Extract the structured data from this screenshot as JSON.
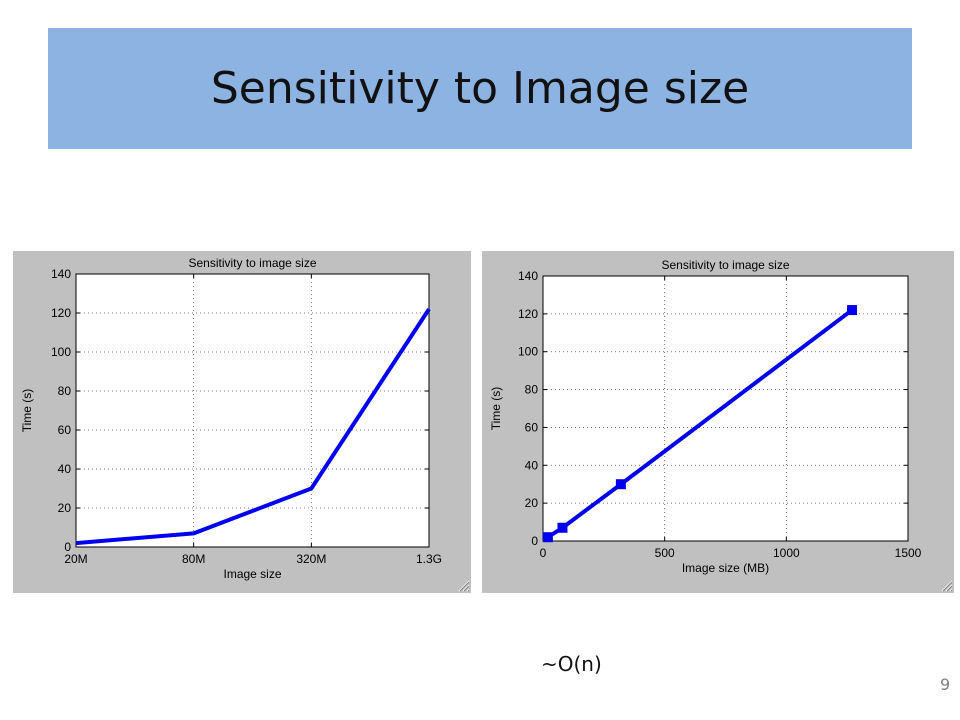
{
  "slide": {
    "title": "Sensitivity to Image size",
    "footnote": "~O(n)",
    "page_number": "9"
  },
  "colors": {
    "title_bar": "#8db3e2",
    "figure_bg": "#c0c0c0",
    "series": "#0000ee"
  },
  "chart_data": [
    {
      "type": "line",
      "title": "Sensitivity to image size",
      "xlabel": "Image size",
      "ylabel": "Time (s)",
      "categories": [
        "20M",
        "80M",
        "320M",
        "1.3G"
      ],
      "series": [
        {
          "values": [
            2,
            7,
            30,
            122
          ]
        }
      ],
      "ylim": [
        0,
        140
      ],
      "yticks": [
        0,
        20,
        40,
        60,
        80,
        100,
        120,
        140
      ],
      "grid": true,
      "markers": false
    },
    {
      "type": "line",
      "title": "Sensitivity to image size",
      "xlabel": "Image size (MB)",
      "ylabel": "Time (s)",
      "x": [
        20,
        80,
        320,
        1270
      ],
      "series": [
        {
          "values": [
            2,
            7,
            30,
            122
          ]
        }
      ],
      "xlim": [
        0,
        1500
      ],
      "xticks": [
        0,
        500,
        1000,
        1500
      ],
      "ylim": [
        0,
        140
      ],
      "yticks": [
        0,
        20,
        40,
        60,
        80,
        100,
        120,
        140
      ],
      "grid": true,
      "markers": true
    }
  ]
}
